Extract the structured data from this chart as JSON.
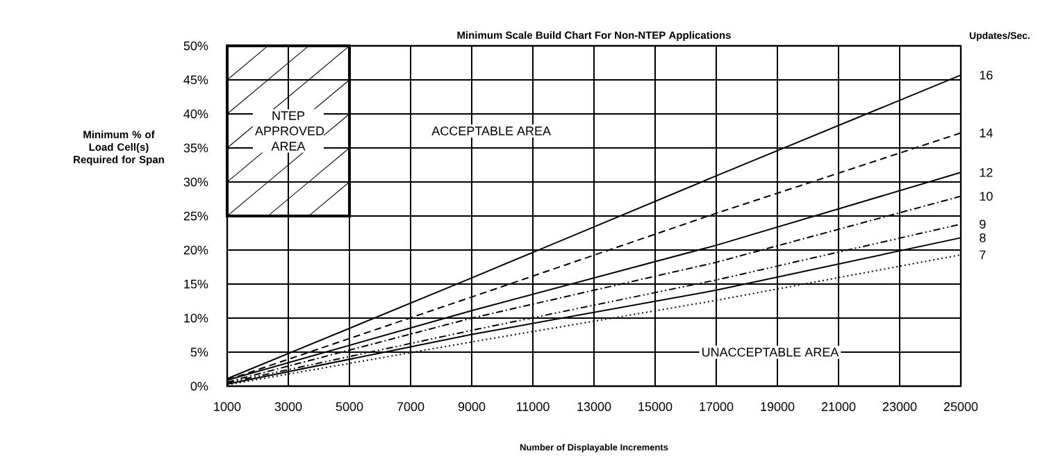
{
  "chart_data": {
    "type": "line",
    "title": "Minimum Scale Build Chart For Non-NTEP Applications",
    "xlabel": "Number of Displayable Increments",
    "ylabel": "Minimum % of Load Cell(s) Required for Span",
    "legend_title": "Updates/Sec.",
    "xlim": [
      1000,
      25000
    ],
    "xticks": [
      1000,
      3000,
      5000,
      7000,
      9000,
      11000,
      13000,
      15000,
      17000,
      19000,
      21000,
      23000,
      25000
    ],
    "ylim": [
      0,
      50
    ],
    "yticks": [
      {
        "value": 0,
        "label": "0%"
      },
      {
        "value": 5,
        "label": "5%"
      },
      {
        "value": 10,
        "label": "10%"
      },
      {
        "value": 15,
        "label": "15%"
      },
      {
        "value": 20,
        "label": "20%"
      },
      {
        "value": 25,
        "label": "25%"
      },
      {
        "value": 30,
        "label": "30%"
      },
      {
        "value": 35,
        "label": "35%"
      },
      {
        "value": 40,
        "label": "40%"
      },
      {
        "value": 45,
        "label": "45%"
      },
      {
        "value": 50,
        "label": "50%"
      }
    ],
    "grid": true,
    "x": [
      1000,
      9000,
      17000,
      25000
    ],
    "series": [
      {
        "name": "16",
        "color": "#000000",
        "line_style": "solid",
        "values": [
          1.1,
          15.9,
          30.9,
          45.7
        ]
      },
      {
        "name": "14",
        "color": "#000000",
        "line_style": "dashed",
        "values": [
          0.9,
          13.1,
          25.4,
          37.2
        ]
      },
      {
        "name": "12",
        "color": "#000000",
        "line_style": "solid",
        "values": [
          0.9,
          11.1,
          20.7,
          31.4
        ]
      },
      {
        "name": "10",
        "color": "#000000",
        "line_style": "dashdot",
        "values": [
          0.6,
          10.0,
          18.2,
          27.9
        ]
      },
      {
        "name": "9",
        "color": "#000000",
        "line_style": "dashdotdot",
        "values": [
          0.5,
          8.2,
          15.6,
          23.8
        ]
      },
      {
        "name": "8",
        "color": "#000000",
        "line_style": "solid",
        "values": [
          0.3,
          7.6,
          14.1,
          21.8
        ]
      },
      {
        "name": "7",
        "color": "#000000",
        "line_style": "dotted",
        "values": [
          0.2,
          6.5,
          12.6,
          19.3
        ]
      }
    ],
    "annotations": [
      "NTEP APPROVED AREA",
      "ACCEPTABLE AREA",
      "UNACCEPTABLE AREA"
    ]
  }
}
